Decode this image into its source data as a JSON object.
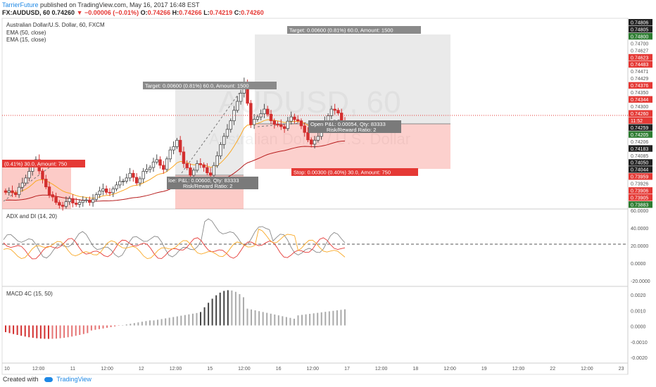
{
  "header": {
    "author": "TarrierFuture",
    "published_text": "published on TradingView.com, May 16, 2017 16:48 EST",
    "symbol": "FX:AUDUSD, 60",
    "last": "0.74260",
    "change": "▼ −0.00006 (−0.01%)",
    "o_label": "O:",
    "o": "0.74266",
    "h_label": "H:",
    "h": "0.74266",
    "l_label": "L:",
    "l": "0.74219",
    "c_label": "C:",
    "c": "0.74260"
  },
  "legend": {
    "title": "Australian Dollar/U.S. Dollar, 60, FXCM",
    "ema50": "EMA (50, close)",
    "ema15": "EMA (15, close)",
    "adx": "ADX and DI (14, 20)",
    "macd": "MACD 4C (15, 50)"
  },
  "watermark": "AUDUSD, 60",
  "watermark_sub": "Australian Dollar / U.S. Dollar",
  "positions": {
    "pos1_target": "Target: 0.00600 (0.81%) 60.0, Amount: 1500",
    "pos1_pnl": "loe: P&L: 0.00600, Qty: 83333",
    "pos1_rr": "Risk/Reward Ratio: 2",
    "pos2_target": "Target: 0.00600 (0.81%) 60.0, Amount: 1500",
    "pos2_pnl": "Open P&L: 0.00054, Qty: 83333",
    "pos2_rr": "Risk/Reward Ratio: 2",
    "pos2_stop": "Stop: 0.00300 (0.40%) 30.0, Amount: 750",
    "left_stop": "(0.41%) 30.0, Amount: 750"
  },
  "price_labels": [
    {
      "t": "0.74806",
      "c": "#212121"
    },
    {
      "t": "0.74805",
      "c": "#212121"
    },
    {
      "t": "0.74800",
      "c": "#2e7d32"
    },
    {
      "t": "0.74700",
      "c": "none"
    },
    {
      "t": "0.74627",
      "c": "none"
    },
    {
      "t": "0.74623",
      "c": "#e53935"
    },
    {
      "t": "0.74483",
      "c": "#e53935"
    },
    {
      "t": "0.74471",
      "c": "none"
    },
    {
      "t": "0.74429",
      "c": "none"
    },
    {
      "t": "0.74376",
      "c": "#e53935"
    },
    {
      "t": "0.74350",
      "c": "none"
    },
    {
      "t": "0.74344",
      "c": "#e53935"
    },
    {
      "t": "0.74300",
      "c": "none"
    },
    {
      "t": "0.74260",
      "c": "#e53935"
    },
    {
      "t": "11:52",
      "c": "#e53935"
    },
    {
      "t": "0.74259",
      "c": "#212121"
    },
    {
      "t": "0.74205",
      "c": "#2e7d32"
    },
    {
      "t": "0.74206",
      "c": "none"
    },
    {
      "t": "0.74183",
      "c": "#212121"
    },
    {
      "t": "0.74085",
      "c": "none"
    },
    {
      "t": "0.74050",
      "c": "#212121"
    },
    {
      "t": "0.74044",
      "c": "#212121"
    },
    {
      "t": "0.73959",
      "c": "#e53935"
    },
    {
      "t": "0.73926",
      "c": "none"
    },
    {
      "t": "0.73906",
      "c": "#e53935"
    },
    {
      "t": "0.73905",
      "c": "#e53935"
    },
    {
      "t": "0.73883",
      "c": "#2e7d32"
    }
  ],
  "axes": {
    "adx_ticks": [
      "60.0000",
      "40.0000",
      "20.0000",
      "0.0000",
      "-20.0000"
    ],
    "macd_ticks": [
      "0.0020",
      "0.0010",
      "0.0000",
      "-0.0010",
      "-0.0020"
    ],
    "x_ticks": [
      "10",
      "12:00",
      "11",
      "12:00",
      "12",
      "12:00",
      "15",
      "12:00",
      "16",
      "12:00",
      "17",
      "12:00",
      "18",
      "12:00",
      "19",
      "12:00",
      "22",
      "12:00",
      "23"
    ]
  },
  "footer": {
    "created": "Created with",
    "brand": "TradingView"
  },
  "chart_data": [
    {
      "type": "candlestick",
      "title": "Australian Dollar/U.S. Dollar, 60, FXCM",
      "ylim": [
        0.7385,
        0.7482
      ],
      "overlays": [
        "EMA (50, close)",
        "EMA (15, close)"
      ],
      "last_close": 0.7426,
      "close_path": [
        0.7394,
        0.7392,
        0.7398,
        0.7404,
        0.741,
        0.74,
        0.7392,
        0.7388,
        0.7386,
        0.739,
        0.7387,
        0.7389,
        0.7388,
        0.7392,
        0.7395,
        0.7393,
        0.7397,
        0.7399,
        0.7403,
        0.7398,
        0.7404,
        0.7406,
        0.741,
        0.7405,
        0.7415,
        0.742,
        0.7408,
        0.7402,
        0.7408,
        0.7406,
        0.7402,
        0.7412,
        0.7422,
        0.743,
        0.744,
        0.745,
        0.7428,
        0.7432,
        0.7436,
        0.743,
        0.7428,
        0.7426,
        0.7432,
        0.743,
        0.7424,
        0.7418,
        0.7422,
        0.743,
        0.7436,
        0.7434,
        0.7426
      ]
    },
    {
      "type": "line",
      "title": "ADX and DI (14, 20)",
      "ylim": [
        -25,
        62
      ],
      "level": 20
    },
    {
      "type": "bar",
      "title": "MACD 4C (15, 50)",
      "ylim": [
        -0.0022,
        0.0022
      ]
    }
  ]
}
